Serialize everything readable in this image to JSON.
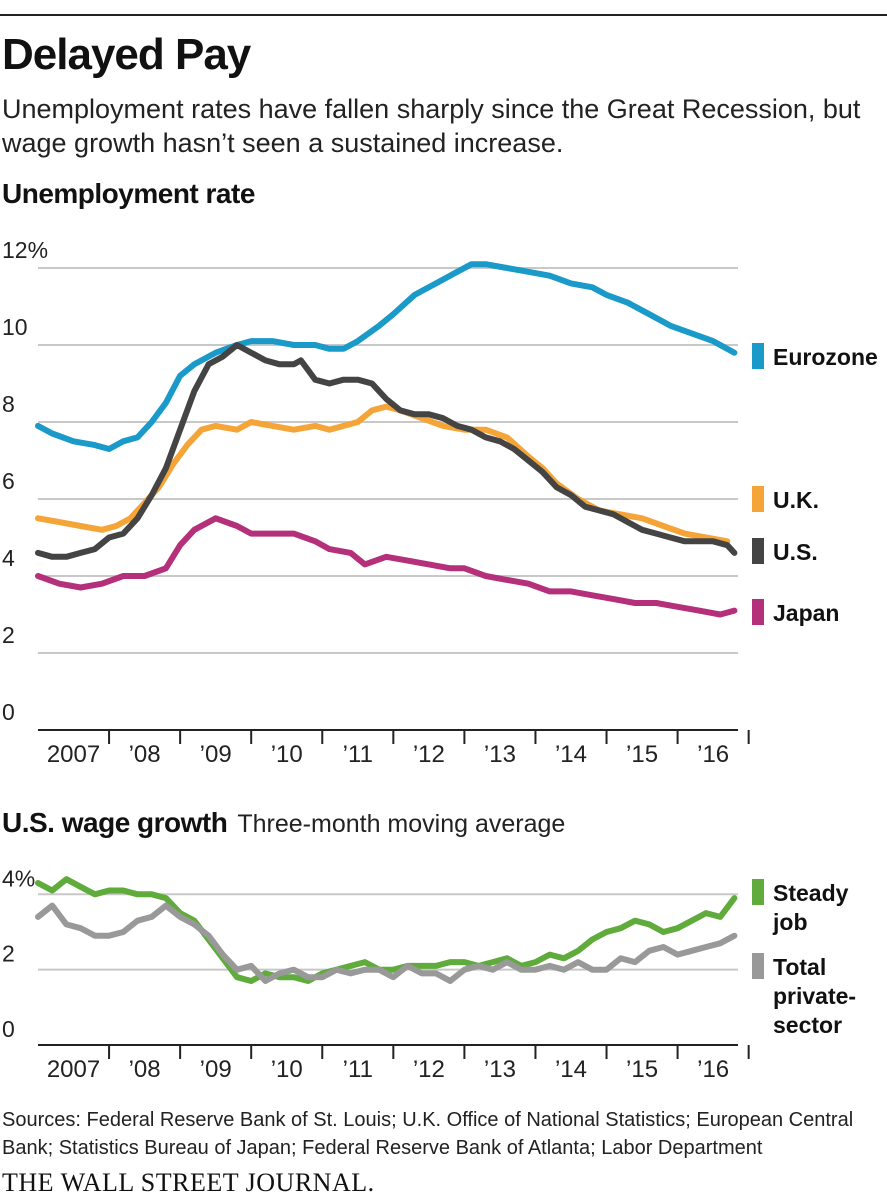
{
  "header": {
    "title": "Delayed Pay",
    "subtitle": "Unemployment rates have fallen sharply since the Great Recession, but wage growth hasn’t seen a sustained increase."
  },
  "sources": "Sources: Federal Reserve Bank of St. Louis; U.K. Office of National Statistics; European Central Bank; Statistics Bureau of Japan; Federal Reserve Bank of Atlanta; Labor Department",
  "logo": "THE WALL STREET JOURNAL.",
  "colors": {
    "eurozone": "#1a9ac9",
    "uk": "#f5a538",
    "us": "#444444",
    "japan": "#b5307a",
    "steady": "#5fab3c",
    "total": "#999999"
  },
  "chart_data": [
    {
      "type": "line",
      "title": "Unemployment rate",
      "xlabel": "",
      "ylabel": "",
      "xlim": [
        2007,
        2016.85
      ],
      "ylim": [
        0,
        12
      ],
      "y_ticks": [
        0,
        2,
        4,
        6,
        8,
        10,
        12
      ],
      "y_tick_labels": [
        "0",
        "2",
        "4",
        "6",
        "8",
        "10",
        "12%"
      ],
      "x_tick_labels": [
        "2007",
        "’08",
        "’09",
        "’10",
        "’11",
        "’12",
        "’13",
        "’14",
        "’15",
        "’16"
      ],
      "grid": true,
      "series": [
        {
          "name": "Eurozone",
          "color_key": "eurozone",
          "x": [
            2007.0,
            2007.2,
            2007.5,
            2007.8,
            2008.0,
            2008.2,
            2008.4,
            2008.6,
            2008.8,
            2009.0,
            2009.2,
            2009.5,
            2009.8,
            2010.0,
            2010.3,
            2010.6,
            2010.9,
            2011.1,
            2011.3,
            2011.5,
            2011.8,
            2012.0,
            2012.3,
            2012.6,
            2012.9,
            2013.1,
            2013.3,
            2013.6,
            2013.9,
            2014.2,
            2014.5,
            2014.8,
            2015.0,
            2015.3,
            2015.6,
            2015.9,
            2016.2,
            2016.5,
            2016.8
          ],
          "values": [
            7.9,
            7.7,
            7.5,
            7.4,
            7.3,
            7.5,
            7.6,
            8.0,
            8.5,
            9.2,
            9.5,
            9.8,
            10.0,
            10.1,
            10.1,
            10.0,
            10.0,
            9.9,
            9.9,
            10.1,
            10.5,
            10.8,
            11.3,
            11.6,
            11.9,
            12.1,
            12.1,
            12.0,
            11.9,
            11.8,
            11.6,
            11.5,
            11.3,
            11.1,
            10.8,
            10.5,
            10.3,
            10.1,
            9.8
          ]
        },
        {
          "name": "U.K.",
          "color_key": "uk",
          "x": [
            2007.0,
            2007.3,
            2007.6,
            2007.9,
            2008.1,
            2008.3,
            2008.5,
            2008.7,
            2008.9,
            2009.1,
            2009.3,
            2009.5,
            2009.8,
            2010.0,
            2010.3,
            2010.6,
            2010.9,
            2011.1,
            2011.3,
            2011.5,
            2011.7,
            2011.9,
            2012.1,
            2012.4,
            2012.7,
            2013.0,
            2013.3,
            2013.6,
            2013.9,
            2014.1,
            2014.3,
            2014.6,
            2014.9,
            2015.2,
            2015.5,
            2015.8,
            2016.1,
            2016.4,
            2016.7
          ],
          "values": [
            5.5,
            5.4,
            5.3,
            5.2,
            5.3,
            5.5,
            5.9,
            6.3,
            6.9,
            7.4,
            7.8,
            7.9,
            7.8,
            8.0,
            7.9,
            7.8,
            7.9,
            7.8,
            7.9,
            8.0,
            8.3,
            8.4,
            8.3,
            8.1,
            7.9,
            7.8,
            7.8,
            7.6,
            7.1,
            6.8,
            6.4,
            6.0,
            5.7,
            5.6,
            5.5,
            5.3,
            5.1,
            5.0,
            4.9
          ]
        },
        {
          "name": "U.S.",
          "color_key": "us",
          "x": [
            2007.0,
            2007.2,
            2007.4,
            2007.6,
            2007.8,
            2008.0,
            2008.2,
            2008.4,
            2008.6,
            2008.8,
            2009.0,
            2009.2,
            2009.4,
            2009.6,
            2009.8,
            2010.0,
            2010.2,
            2010.4,
            2010.6,
            2010.7,
            2010.9,
            2011.1,
            2011.3,
            2011.5,
            2011.7,
            2011.9,
            2012.1,
            2012.3,
            2012.5,
            2012.7,
            2012.9,
            2013.1,
            2013.3,
            2013.5,
            2013.7,
            2013.9,
            2014.1,
            2014.3,
            2014.5,
            2014.7,
            2014.9,
            2015.1,
            2015.3,
            2015.5,
            2015.7,
            2015.9,
            2016.1,
            2016.3,
            2016.5,
            2016.7,
            2016.8
          ],
          "values": [
            4.6,
            4.5,
            4.5,
            4.6,
            4.7,
            5.0,
            5.1,
            5.5,
            6.1,
            6.8,
            7.8,
            8.8,
            9.5,
            9.7,
            10.0,
            9.8,
            9.6,
            9.5,
            9.5,
            9.6,
            9.1,
            9.0,
            9.1,
            9.1,
            9.0,
            8.6,
            8.3,
            8.2,
            8.2,
            8.1,
            7.9,
            7.8,
            7.6,
            7.5,
            7.3,
            7.0,
            6.7,
            6.3,
            6.1,
            5.8,
            5.7,
            5.6,
            5.4,
            5.2,
            5.1,
            5.0,
            4.9,
            4.9,
            4.9,
            4.8,
            4.6
          ]
        },
        {
          "name": "Japan",
          "color_key": "japan",
          "x": [
            2007.0,
            2007.3,
            2007.6,
            2007.9,
            2008.2,
            2008.5,
            2008.8,
            2009.0,
            2009.2,
            2009.5,
            2009.8,
            2010.0,
            2010.3,
            2010.6,
            2010.9,
            2011.1,
            2011.4,
            2011.6,
            2011.9,
            2012.2,
            2012.5,
            2012.8,
            2013.0,
            2013.3,
            2013.6,
            2013.9,
            2014.2,
            2014.5,
            2014.8,
            2015.1,
            2015.4,
            2015.7,
            2016.0,
            2016.3,
            2016.6,
            2016.8
          ],
          "values": [
            4.0,
            3.8,
            3.7,
            3.8,
            4.0,
            4.0,
            4.2,
            4.8,
            5.2,
            5.5,
            5.3,
            5.1,
            5.1,
            5.1,
            4.9,
            4.7,
            4.6,
            4.3,
            4.5,
            4.4,
            4.3,
            4.2,
            4.2,
            4.0,
            3.9,
            3.8,
            3.6,
            3.6,
            3.5,
            3.4,
            3.3,
            3.3,
            3.2,
            3.1,
            3.0,
            3.1
          ]
        }
      ],
      "legend": [
        {
          "label": "Eurozone",
          "color_key": "eurozone"
        },
        {
          "label": "U.K.",
          "color_key": "uk"
        },
        {
          "label": "U.S.",
          "color_key": "us"
        },
        {
          "label": "Japan",
          "color_key": "japan"
        }
      ]
    },
    {
      "type": "line",
      "title": "U.S. wage growth",
      "subtitle": "Three-month moving average",
      "xlabel": "",
      "ylabel": "",
      "xlim": [
        2007,
        2016.85
      ],
      "ylim": [
        0,
        4.3
      ],
      "y_ticks": [
        0,
        2,
        4
      ],
      "y_tick_labels": [
        "0",
        "2",
        "4%"
      ],
      "x_tick_labels": [
        "2007",
        "’08",
        "’09",
        "’10",
        "’11",
        "’12",
        "’13",
        "’14",
        "’15",
        "’16"
      ],
      "grid": true,
      "series": [
        {
          "name": "Steady job",
          "color_key": "steady",
          "x": [
            2007.0,
            2007.2,
            2007.4,
            2007.6,
            2007.8,
            2008.0,
            2008.2,
            2008.4,
            2008.6,
            2008.8,
            2009.0,
            2009.2,
            2009.4,
            2009.6,
            2009.8,
            2010.0,
            2010.2,
            2010.4,
            2010.6,
            2010.8,
            2011.0,
            2011.2,
            2011.4,
            2011.6,
            2011.8,
            2012.0,
            2012.2,
            2012.4,
            2012.6,
            2012.8,
            2013.0,
            2013.2,
            2013.4,
            2013.6,
            2013.8,
            2014.0,
            2014.2,
            2014.4,
            2014.6,
            2014.8,
            2015.0,
            2015.2,
            2015.4,
            2015.6,
            2015.8,
            2016.0,
            2016.2,
            2016.4,
            2016.6,
            2016.8
          ],
          "values": [
            4.3,
            4.1,
            4.4,
            4.2,
            4.0,
            4.1,
            4.1,
            4.0,
            4.0,
            3.9,
            3.5,
            3.3,
            2.8,
            2.3,
            1.8,
            1.7,
            1.9,
            1.8,
            1.8,
            1.7,
            1.9,
            2.0,
            2.1,
            2.2,
            2.0,
            2.0,
            2.1,
            2.1,
            2.1,
            2.2,
            2.2,
            2.1,
            2.2,
            2.3,
            2.1,
            2.2,
            2.4,
            2.3,
            2.5,
            2.8,
            3.0,
            3.1,
            3.3,
            3.2,
            3.0,
            3.1,
            3.3,
            3.5,
            3.4,
            3.9
          ]
        },
        {
          "name": "Total private-sector",
          "color_key": "total",
          "x": [
            2007.0,
            2007.2,
            2007.4,
            2007.6,
            2007.8,
            2008.0,
            2008.2,
            2008.4,
            2008.6,
            2008.8,
            2009.0,
            2009.2,
            2009.4,
            2009.6,
            2009.8,
            2010.0,
            2010.2,
            2010.4,
            2010.6,
            2010.8,
            2011.0,
            2011.2,
            2011.4,
            2011.6,
            2011.8,
            2012.0,
            2012.2,
            2012.4,
            2012.6,
            2012.8,
            2013.0,
            2013.2,
            2013.4,
            2013.6,
            2013.8,
            2014.0,
            2014.2,
            2014.4,
            2014.6,
            2014.8,
            2015.0,
            2015.2,
            2015.4,
            2015.6,
            2015.8,
            2016.0,
            2016.2,
            2016.4,
            2016.6,
            2016.8
          ],
          "values": [
            3.4,
            3.7,
            3.2,
            3.1,
            2.9,
            2.9,
            3.0,
            3.3,
            3.4,
            3.7,
            3.4,
            3.2,
            2.9,
            2.4,
            2.0,
            2.1,
            1.7,
            1.9,
            2.0,
            1.8,
            1.8,
            2.0,
            1.9,
            2.0,
            2.0,
            1.8,
            2.1,
            1.9,
            1.9,
            1.7,
            2.0,
            2.1,
            2.0,
            2.2,
            2.0,
            2.0,
            2.1,
            2.0,
            2.2,
            2.0,
            2.0,
            2.3,
            2.2,
            2.5,
            2.6,
            2.4,
            2.5,
            2.6,
            2.7,
            2.9
          ]
        }
      ],
      "legend": [
        {
          "label_lines": [
            "Steady",
            "job"
          ],
          "color_key": "steady"
        },
        {
          "label_lines": [
            "Total",
            "private-",
            "sector"
          ],
          "color_key": "total"
        }
      ]
    }
  ]
}
